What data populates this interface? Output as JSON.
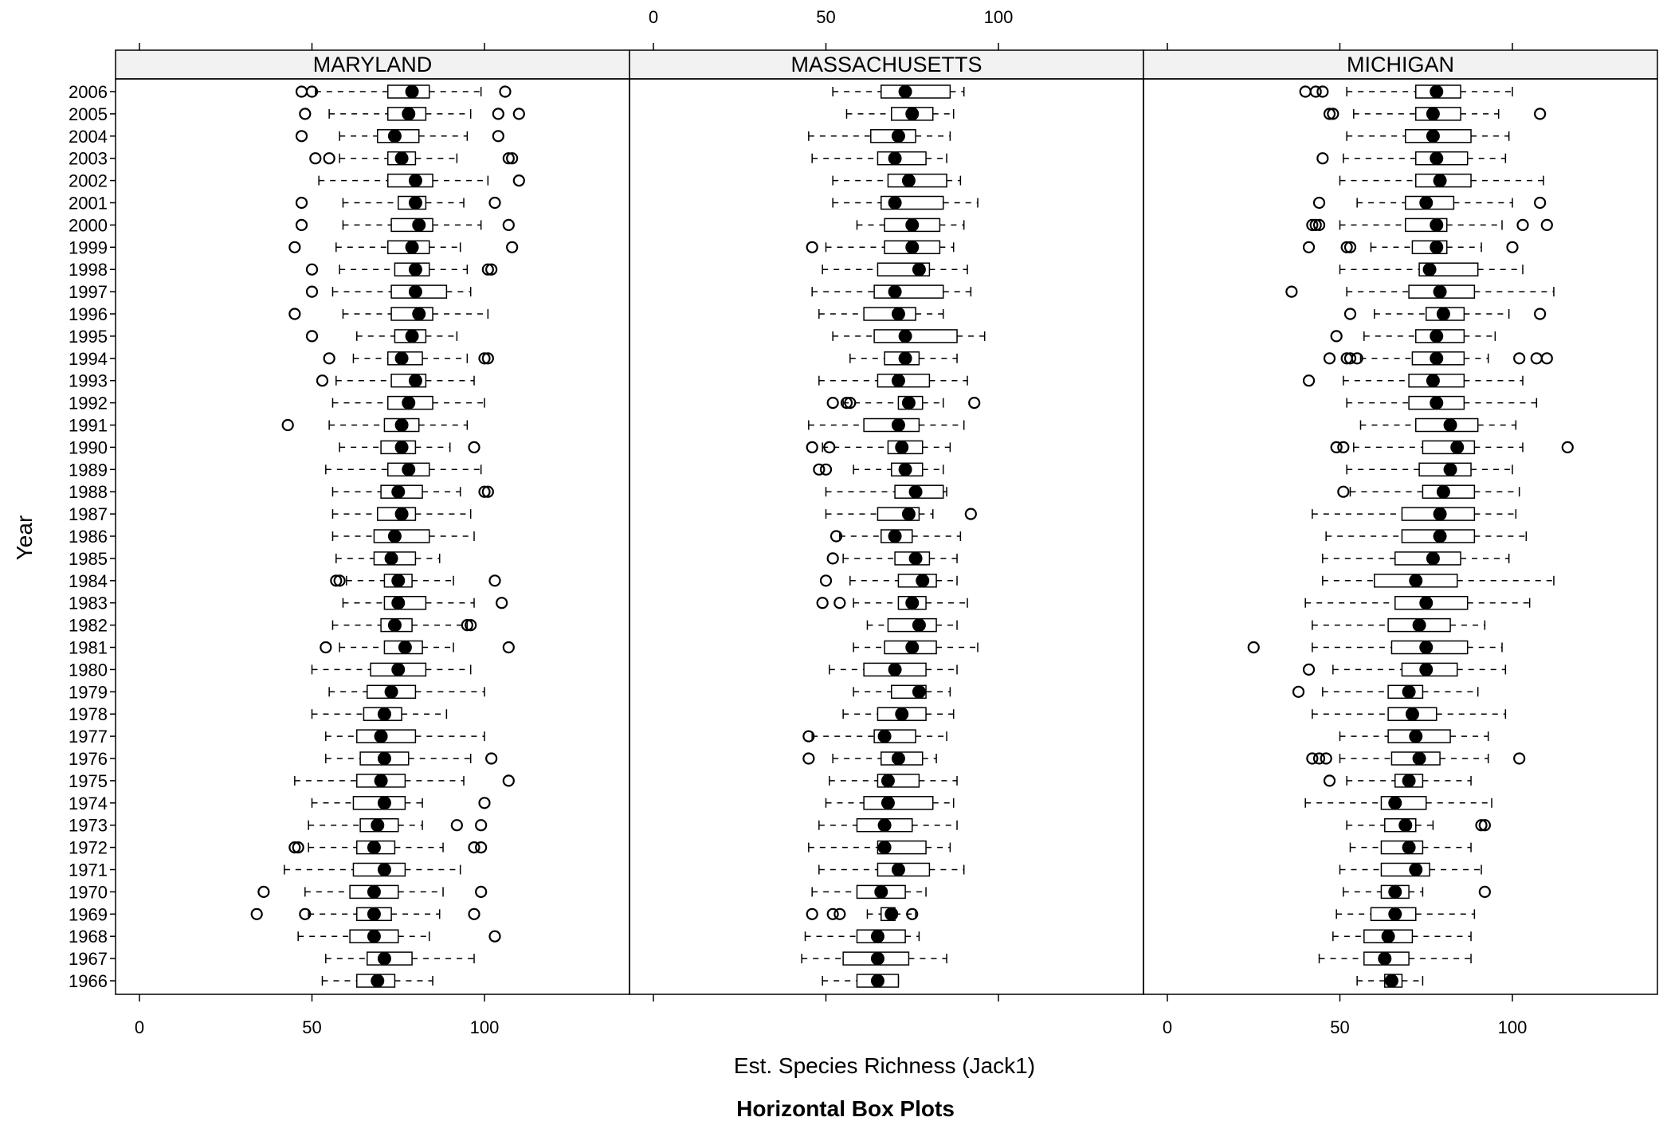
{
  "chart_data": {
    "type": "boxplot",
    "title": "Horizontal Box Plots",
    "xlabel": "Est. Species Richness (Jack1)",
    "ylabel": "Year",
    "xlim": [
      0,
      130
    ],
    "x_ticks": [
      0,
      50,
      100
    ],
    "x_tick_labels": [
      "0",
      "50",
      "100"
    ],
    "grid": false,
    "legend": "none",
    "years": [
      "2006",
      "2005",
      "2004",
      "2003",
      "2002",
      "2001",
      "2000",
      "1999",
      "1998",
      "1997",
      "1996",
      "1995",
      "1994",
      "1993",
      "1992",
      "1991",
      "1990",
      "1989",
      "1988",
      "1987",
      "1986",
      "1985",
      "1984",
      "1983",
      "1982",
      "1981",
      "1980",
      "1979",
      "1978",
      "1977",
      "1976",
      "1975",
      "1974",
      "1973",
      "1972",
      "1971",
      "1970",
      "1969",
      "1968",
      "1967",
      "1966"
    ],
    "panels": [
      {
        "name": "MARYLAND",
        "boxes": [
          [
            51,
            72,
            79,
            84,
            99,
            [
              47,
              50,
              106
            ]
          ],
          [
            55,
            72,
            78,
            83,
            96,
            [
              48,
              104,
              110
            ]
          ],
          [
            58,
            69,
            74,
            81,
            95,
            [
              47,
              104
            ]
          ],
          [
            58,
            72,
            76,
            80,
            92,
            [
              51,
              55,
              107,
              108
            ]
          ],
          [
            52,
            72,
            80,
            85,
            101,
            [
              110
            ]
          ],
          [
            59,
            75,
            80,
            83,
            94,
            [
              47,
              103
            ]
          ],
          [
            59,
            73,
            81,
            85,
            99,
            [
              47,
              107
            ]
          ],
          [
            57,
            72,
            79,
            84,
            93,
            [
              45,
              108
            ]
          ],
          [
            58,
            74,
            80,
            84,
            95,
            [
              50,
              101,
              102
            ]
          ],
          [
            56,
            73,
            80,
            89,
            96,
            [
              50
            ]
          ],
          [
            59,
            73,
            81,
            85,
            101,
            [
              45
            ]
          ],
          [
            63,
            74,
            79,
            83,
            92,
            [
              50
            ]
          ],
          [
            62,
            72,
            76,
            82,
            95,
            [
              55,
              100,
              101
            ]
          ],
          [
            57,
            73,
            80,
            83,
            97,
            [
              53
            ]
          ],
          [
            56,
            72,
            78,
            85,
            100,
            []
          ],
          [
            55,
            71,
            76,
            81,
            95,
            [
              43
            ]
          ],
          [
            58,
            70,
            76,
            80,
            90,
            [
              97
            ]
          ],
          [
            54,
            72,
            78,
            84,
            99,
            []
          ],
          [
            56,
            70,
            75,
            82,
            93,
            [
              100,
              101
            ]
          ],
          [
            56,
            69,
            76,
            80,
            96,
            []
          ],
          [
            56,
            68,
            74,
            84,
            97,
            []
          ],
          [
            57,
            68,
            73,
            80,
            87,
            []
          ],
          [
            60,
            71,
            75,
            79,
            91,
            [
              57,
              58,
              103
            ]
          ],
          [
            59,
            71,
            75,
            83,
            97,
            [
              105
            ]
          ],
          [
            56,
            70,
            74,
            79,
            95,
            [
              95,
              96
            ]
          ],
          [
            58,
            71,
            77,
            82,
            91,
            [
              54,
              107
            ]
          ],
          [
            50,
            67,
            75,
            83,
            96,
            []
          ],
          [
            55,
            66,
            73,
            80,
            100,
            []
          ],
          [
            50,
            65,
            71,
            76,
            89,
            []
          ],
          [
            54,
            63,
            70,
            80,
            100,
            []
          ],
          [
            54,
            64,
            71,
            78,
            96,
            [
              102
            ]
          ],
          [
            45,
            63,
            70,
            77,
            94,
            [
              107
            ]
          ],
          [
            50,
            62,
            71,
            77,
            82,
            [
              100
            ]
          ],
          [
            49,
            64,
            69,
            75,
            82,
            [
              92,
              99
            ]
          ],
          [
            49,
            63,
            68,
            74,
            88,
            [
              45,
              46,
              97,
              99
            ]
          ],
          [
            42,
            62,
            71,
            77,
            93,
            []
          ],
          [
            48,
            61,
            68,
            75,
            88,
            [
              36,
              99
            ]
          ],
          [
            49,
            63,
            68,
            73,
            87,
            [
              34,
              48,
              97
            ]
          ],
          [
            46,
            61,
            68,
            75,
            84,
            [
              103
            ]
          ],
          [
            54,
            66,
            71,
            79,
            97,
            []
          ],
          [
            53,
            63,
            69,
            74,
            85,
            []
          ]
        ]
      },
      {
        "name": "MASSACHUSETTS",
        "boxes": [
          [
            52,
            66,
            73,
            86,
            90,
            []
          ],
          [
            56,
            69,
            75,
            81,
            87,
            []
          ],
          [
            45,
            63,
            71,
            76,
            86,
            []
          ],
          [
            46,
            65,
            70,
            79,
            85,
            []
          ],
          [
            52,
            68,
            74,
            85,
            89,
            []
          ],
          [
            52,
            66,
            70,
            84,
            94,
            []
          ],
          [
            59,
            67,
            75,
            83,
            90,
            []
          ],
          [
            50,
            67,
            75,
            83,
            87,
            [
              46
            ]
          ],
          [
            49,
            65,
            77,
            80,
            91,
            []
          ],
          [
            46,
            64,
            70,
            84,
            92,
            []
          ],
          [
            48,
            61,
            71,
            76,
            84,
            []
          ],
          [
            52,
            64,
            73,
            88,
            96,
            []
          ],
          [
            57,
            67,
            73,
            77,
            88,
            []
          ],
          [
            48,
            65,
            71,
            80,
            91,
            []
          ],
          [
            55,
            71,
            74,
            78,
            84,
            [
              52,
              56,
              57,
              93
            ]
          ],
          [
            45,
            61,
            71,
            77,
            90,
            []
          ],
          [
            49,
            68,
            72,
            78,
            86,
            [
              46,
              51
            ]
          ],
          [
            58,
            69,
            73,
            78,
            84,
            [
              48,
              50
            ]
          ],
          [
            50,
            70,
            76,
            84,
            85,
            []
          ],
          [
            50,
            65,
            74,
            77,
            81,
            [
              92
            ]
          ],
          [
            54,
            66,
            70,
            75,
            89,
            [
              53
            ]
          ],
          [
            55,
            70,
            76,
            80,
            88,
            [
              52
            ]
          ],
          [
            57,
            71,
            78,
            82,
            88,
            [
              50
            ]
          ],
          [
            58,
            71,
            75,
            79,
            91,
            [
              49,
              54
            ]
          ],
          [
            62,
            68,
            77,
            82,
            88,
            []
          ],
          [
            58,
            67,
            75,
            82,
            94,
            []
          ],
          [
            51,
            61,
            70,
            79,
            88,
            []
          ],
          [
            58,
            69,
            77,
            79,
            86,
            []
          ],
          [
            55,
            65,
            72,
            79,
            87,
            []
          ],
          [
            46,
            64,
            67,
            76,
            85,
            [
              45
            ]
          ],
          [
            52,
            66,
            71,
            78,
            82,
            [
              45
            ]
          ],
          [
            51,
            65,
            68,
            77,
            88,
            []
          ],
          [
            50,
            61,
            68,
            81,
            87,
            []
          ],
          [
            48,
            59,
            67,
            75,
            88,
            []
          ],
          [
            45,
            65,
            67,
            79,
            86,
            []
          ],
          [
            48,
            65,
            71,
            80,
            90,
            []
          ],
          [
            46,
            59,
            66,
            73,
            79,
            []
          ],
          [
            62,
            66,
            69,
            70,
            76,
            [
              46,
              52,
              54,
              75
            ]
          ],
          [
            44,
            59,
            65,
            73,
            77,
            []
          ],
          [
            43,
            55,
            65,
            74,
            85,
            []
          ],
          [
            49,
            59,
            65,
            71,
            71,
            []
          ]
        ]
      },
      {
        "name": "MICHIGAN",
        "boxes": [
          [
            52,
            72,
            78,
            85,
            100,
            [
              40,
              43,
              45
            ]
          ],
          [
            54,
            72,
            77,
            85,
            96,
            [
              47,
              48,
              108
            ]
          ],
          [
            52,
            69,
            77,
            88,
            99,
            []
          ],
          [
            51,
            72,
            78,
            87,
            98,
            [
              45
            ]
          ],
          [
            50,
            72,
            79,
            88,
            109,
            []
          ],
          [
            55,
            69,
            75,
            83,
            100,
            [
              44,
              108
            ]
          ],
          [
            50,
            69,
            78,
            81,
            97,
            [
              42,
              43,
              44,
              103,
              110
            ]
          ],
          [
            59,
            71,
            78,
            81,
            91,
            [
              41,
              52,
              53,
              100
            ]
          ],
          [
            50,
            73,
            76,
            90,
            103,
            []
          ],
          [
            52,
            70,
            79,
            89,
            112,
            [
              36
            ]
          ],
          [
            60,
            75,
            80,
            86,
            99,
            [
              53,
              108
            ]
          ],
          [
            57,
            72,
            78,
            86,
            95,
            [
              49
            ]
          ],
          [
            56,
            71,
            78,
            86,
            93,
            [
              47,
              52,
              53,
              55,
              102,
              107,
              110
            ]
          ],
          [
            51,
            70,
            77,
            86,
            103,
            [
              41
            ]
          ],
          [
            52,
            70,
            78,
            86,
            107,
            []
          ],
          [
            56,
            72,
            82,
            90,
            101,
            []
          ],
          [
            54,
            74,
            84,
            89,
            103,
            [
              49,
              51,
              116
            ]
          ],
          [
            52,
            73,
            82,
            88,
            100,
            []
          ],
          [
            53,
            74,
            80,
            89,
            102,
            [
              51
            ]
          ],
          [
            42,
            68,
            79,
            89,
            101,
            []
          ],
          [
            46,
            68,
            79,
            89,
            104,
            []
          ],
          [
            45,
            66,
            77,
            85,
            99,
            []
          ],
          [
            45,
            60,
            72,
            84,
            112,
            []
          ],
          [
            40,
            66,
            75,
            87,
            105,
            []
          ],
          [
            42,
            64,
            73,
            82,
            92,
            []
          ],
          [
            42,
            65,
            75,
            87,
            97,
            [
              25
            ]
          ],
          [
            48,
            68,
            75,
            84,
            98,
            [
              41
            ]
          ],
          [
            45,
            64,
            70,
            74,
            90,
            [
              38
            ]
          ],
          [
            42,
            64,
            71,
            78,
            98,
            []
          ],
          [
            50,
            64,
            72,
            82,
            93,
            []
          ],
          [
            50,
            65,
            73,
            79,
            93,
            [
              42,
              44,
              46,
              102
            ]
          ],
          [
            52,
            66,
            70,
            74,
            88,
            [
              47
            ]
          ],
          [
            40,
            62,
            66,
            75,
            94,
            []
          ],
          [
            52,
            63,
            69,
            72,
            77,
            [
              91,
              92
            ]
          ],
          [
            53,
            62,
            70,
            74,
            88,
            []
          ],
          [
            50,
            62,
            72,
            76,
            91,
            []
          ],
          [
            51,
            62,
            66,
            70,
            74,
            [
              92
            ]
          ],
          [
            49,
            59,
            66,
            72,
            89,
            []
          ],
          [
            48,
            57,
            64,
            71,
            88,
            []
          ],
          [
            44,
            57,
            63,
            70,
            88,
            []
          ],
          [
            55,
            63,
            65,
            68,
            74,
            []
          ]
        ]
      }
    ]
  }
}
